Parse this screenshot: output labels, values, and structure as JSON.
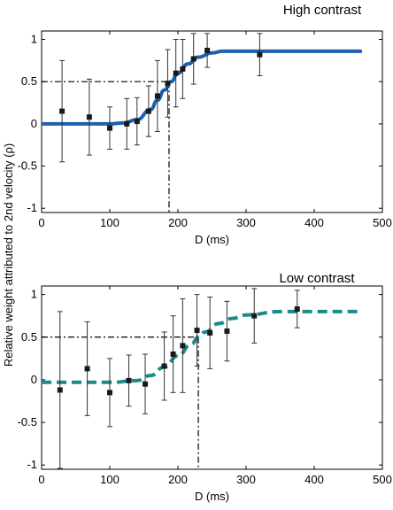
{
  "ylabel": "Relative weight attributed to 2nd velocity (ρ)",
  "chart_data": [
    {
      "type": "scatter",
      "title": "High contrast",
      "xlabel": "D (ms)",
      "xlim": [
        0,
        500
      ],
      "ylim": [
        -1.05,
        1.1
      ],
      "xticks": [
        0,
        100,
        200,
        300,
        400,
        500
      ],
      "yticks": [
        -1,
        -0.5,
        0,
        0.5,
        1
      ],
      "ytick_labels": [
        "-1",
        "-0.5",
        "0",
        "0.5",
        "1"
      ],
      "grid": false,
      "series": [
        {
          "kind": "points_with_error_bars",
          "color": "#1a1a1a",
          "x": [
            30,
            70,
            100,
            125,
            140,
            157,
            170,
            185,
            197,
            207,
            223,
            243,
            320
          ],
          "y": [
            0.15,
            0.08,
            -0.05,
            0.0,
            0.03,
            0.15,
            0.33,
            0.48,
            0.6,
            0.65,
            0.77,
            0.87,
            0.82
          ],
          "yerr": [
            0.6,
            0.45,
            0.25,
            0.3,
            0.28,
            0.3,
            0.42,
            0.4,
            0.4,
            0.35,
            0.3,
            0.2,
            0.25
          ]
        },
        {
          "kind": "fitted_sigmoid",
          "color": "#1f5fae",
          "style": "solid",
          "x": [
            0,
            100,
            120,
            140,
            160,
            170,
            180,
            190,
            200,
            215,
            230,
            250,
            265,
            300,
            400,
            470
          ],
          "y": [
            0,
            0,
            0.01,
            0.05,
            0.17,
            0.28,
            0.4,
            0.5,
            0.6,
            0.71,
            0.79,
            0.84,
            0.86,
            0.86,
            0.86,
            0.86
          ]
        }
      ],
      "threshold": {
        "x": 187,
        "y": 0.5
      }
    },
    {
      "type": "scatter",
      "title": "Low contrast",
      "xlabel": "D (ms)",
      "xlim": [
        0,
        500
      ],
      "ylim": [
        -1.05,
        1.1
      ],
      "xticks": [
        0,
        100,
        200,
        300,
        400,
        500
      ],
      "yticks": [
        -1,
        -0.5,
        0,
        0.5,
        1
      ],
      "ytick_labels": [
        "-1",
        "-0.5",
        "0",
        "0.5",
        "1"
      ],
      "grid": false,
      "series": [
        {
          "kind": "points_with_error_bars",
          "color": "#1a1a1a",
          "x": [
            27,
            67,
            100,
            128,
            152,
            180,
            193,
            207,
            228,
            247,
            272,
            312,
            375
          ],
          "y": [
            -0.12,
            0.13,
            -0.15,
            -0.01,
            -0.05,
            0.16,
            0.3,
            0.4,
            0.58,
            0.55,
            0.57,
            0.75,
            0.83
          ],
          "yerr": [
            0.92,
            0.55,
            0.4,
            0.3,
            0.35,
            0.4,
            0.45,
            0.55,
            0.42,
            0.42,
            0.35,
            0.32,
            0.22
          ]
        },
        {
          "kind": "fitted_sigmoid",
          "color": "#1a8a8a",
          "style": "dashed",
          "x": [
            0,
            100,
            140,
            160,
            180,
            200,
            220,
            230,
            240,
            260,
            280,
            300,
            350,
            400,
            465
          ],
          "y": [
            -0.03,
            -0.03,
            -0.01,
            0.05,
            0.15,
            0.28,
            0.42,
            0.5,
            0.56,
            0.66,
            0.72,
            0.76,
            0.8,
            0.8,
            0.8
          ]
        }
      ],
      "threshold": {
        "x": 230,
        "y": 0.5
      }
    }
  ]
}
